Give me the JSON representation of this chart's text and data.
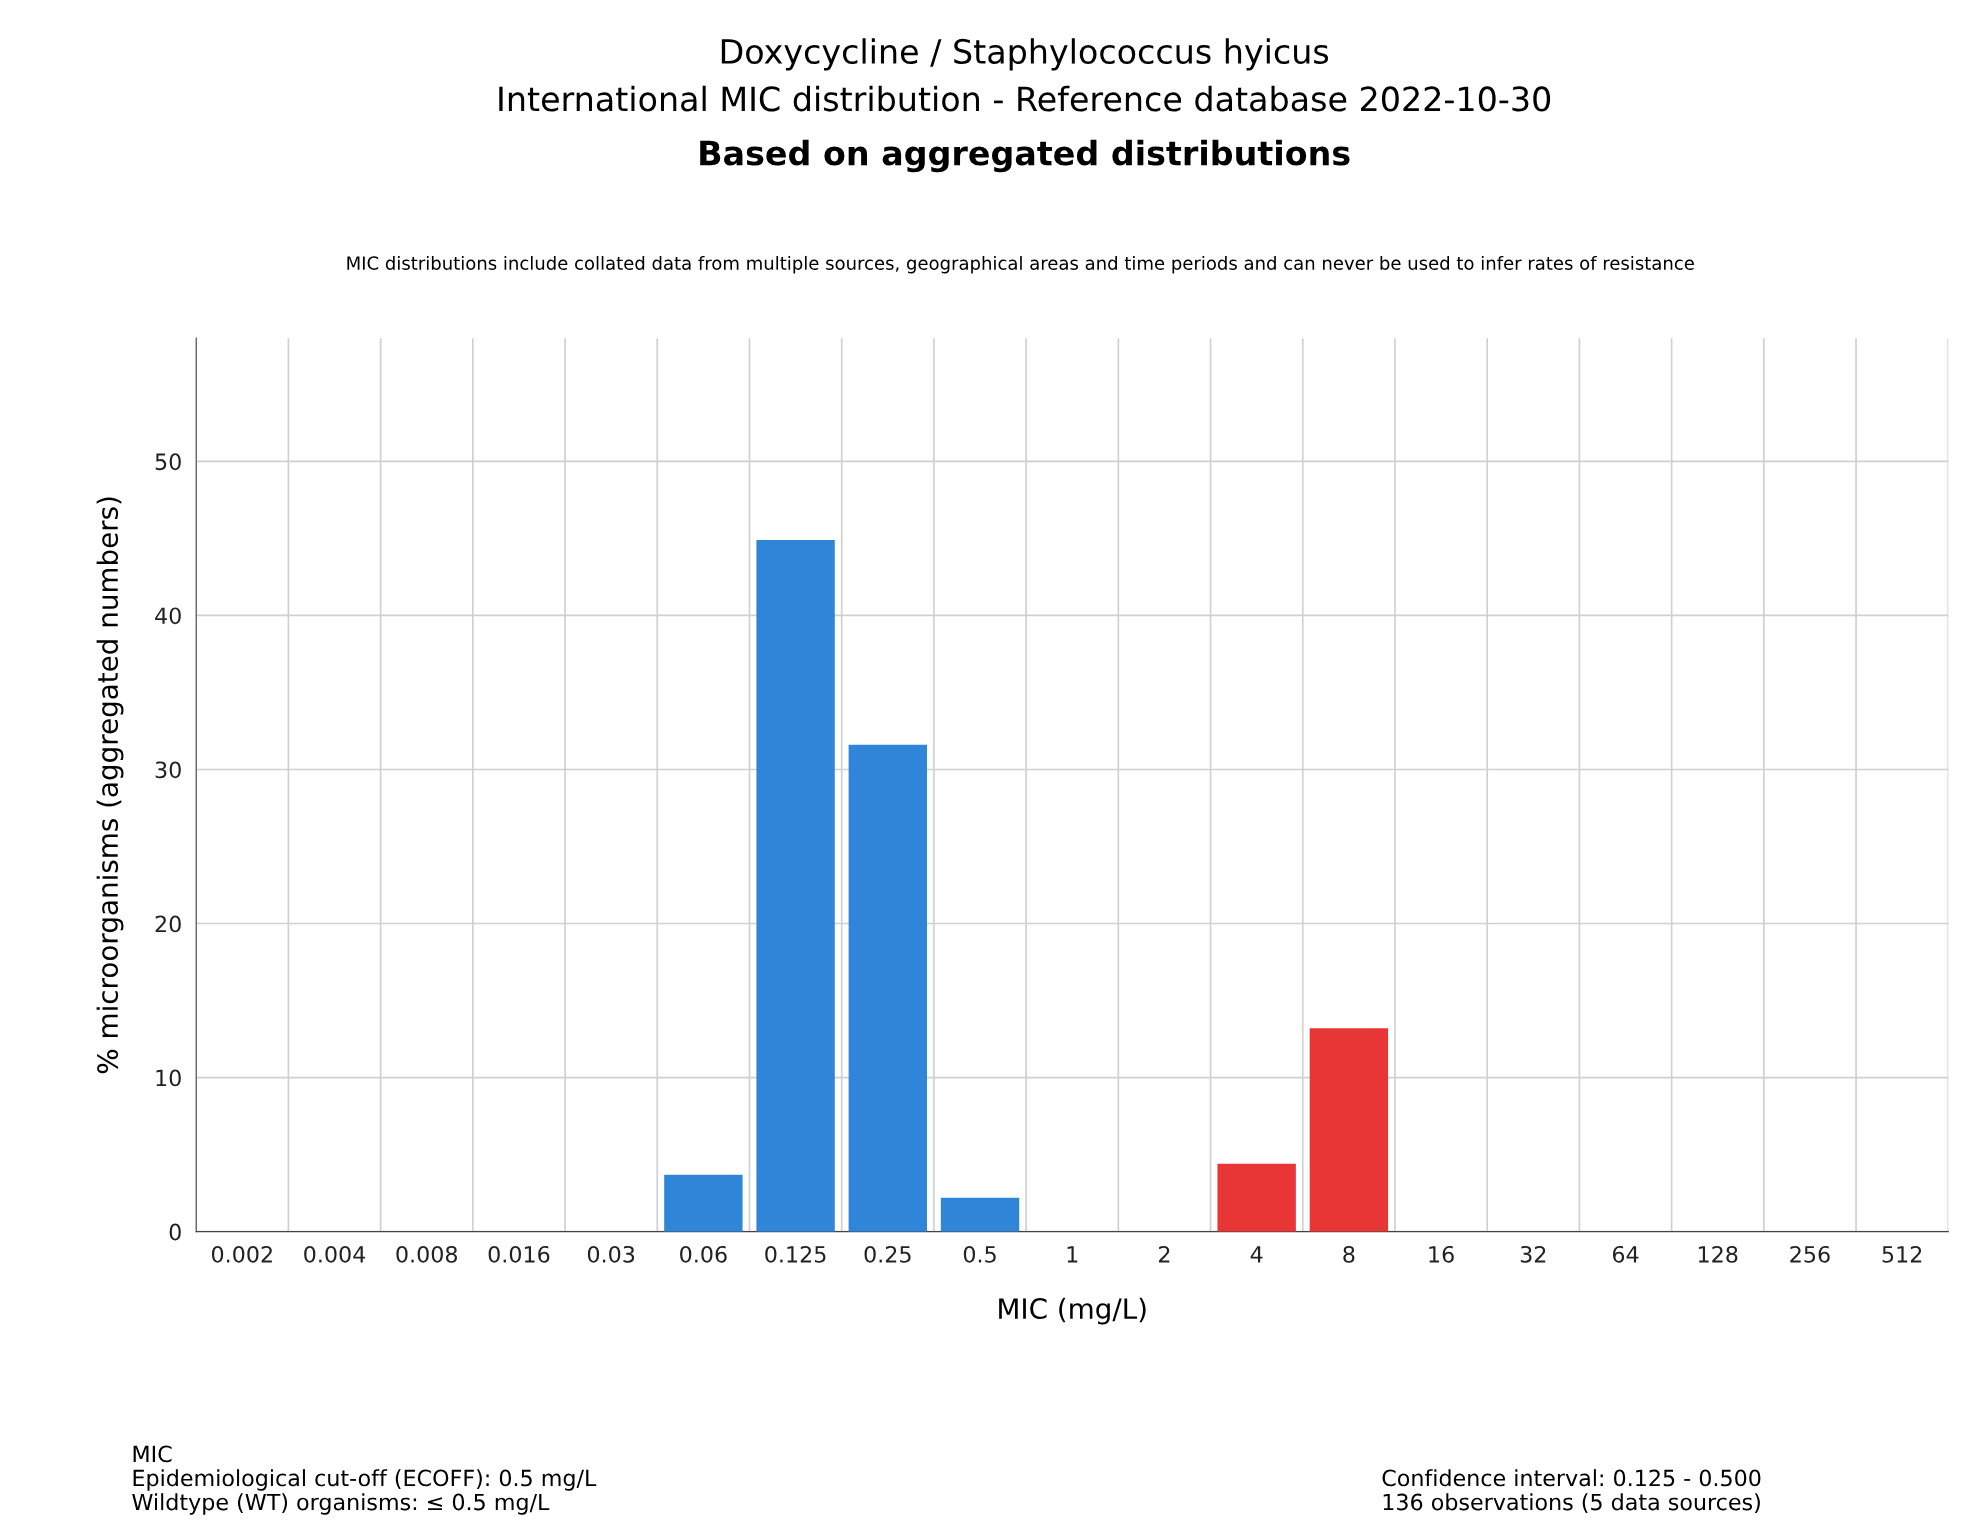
{
  "chart_data": {
    "type": "bar",
    "title": "Doxycycline / Staphylococcus hyicus\nInternational MIC distribution - Reference database 2022-10-30",
    "subtitle": "Based on aggregated distributions",
    "xlabel": "MIC (mg/L)",
    "ylabel": "% microorganisms (aggregated numbers)",
    "categories": [
      "0.002",
      "0.004",
      "0.008",
      "0.016",
      "0.03",
      "0.06",
      "0.125",
      "0.25",
      "0.5",
      "1",
      "2",
      "4",
      "8",
      "16",
      "32",
      "64",
      "128",
      "256",
      "512"
    ],
    "values": [
      0,
      0,
      0,
      0,
      0,
      3.7,
      44.9,
      31.6,
      2.2,
      0,
      0,
      4.4,
      13.2,
      0,
      0,
      0,
      0,
      0,
      0
    ],
    "colors": [
      "#2f86d9",
      "#2f86d9",
      "#2f86d9",
      "#2f86d9",
      "#2f86d9",
      "#2f86d9",
      "#2f86d9",
      "#2f86d9",
      "#2f86d9",
      "#e83535",
      "#e83535",
      "#e83535",
      "#e83535",
      "#e83535",
      "#e83535",
      "#e83535",
      "#e83535",
      "#e83535",
      "#e83535"
    ],
    "ylim": [
      0,
      58
    ],
    "yticks": [
      0,
      10,
      20,
      30,
      40,
      50
    ],
    "grid": true,
    "annotations": [
      "MIC distributions include collated data from multiple sources, geographical areas and time periods and can never be used to infer rates of resistance",
      "MIC\nEpidemiological cut-off (ECOFF): 0.5 mg/L\nWildtype (WT) organisms: ≤ 0.5 mg/L",
      "Confidence interval: 0.125 - 0.500\n136 observations (5 data sources)"
    ]
  }
}
